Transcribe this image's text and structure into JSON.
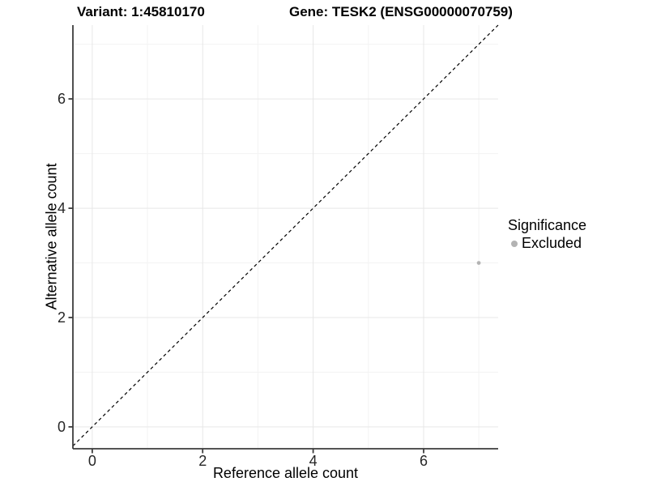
{
  "chart_data": {
    "type": "scatter",
    "title_left": "Variant: 1:45810170",
    "title_right": "Gene: TESK2 (ENSG00000070759)",
    "xlabel": "Reference allele count",
    "ylabel": "Alternative allele count",
    "xlim": [
      -0.35,
      7.35
    ],
    "ylim": [
      -0.4,
      7.35
    ],
    "x_ticks": [
      0,
      2,
      4,
      6
    ],
    "y_ticks": [
      0,
      2,
      4,
      6
    ],
    "x_minor_gridlines": [
      1,
      3,
      5,
      7
    ],
    "y_minor_gridlines": [
      1,
      3,
      5,
      7
    ],
    "grid": true,
    "points": [
      {
        "x": 7,
        "y": 3,
        "series": "Excluded",
        "color": "#b3b3b3"
      }
    ],
    "reference_line": {
      "type": "identity",
      "style": "dashed",
      "color": "#000000"
    },
    "legend": {
      "title": "Significance",
      "position": "right",
      "items": [
        {
          "label": "Excluded",
          "color": "#b3b3b3"
        }
      ]
    },
    "colors": {
      "background": "#ffffff",
      "axis_line": "#3c3c3c",
      "grid_major": "#e7e7e7",
      "grid_minor": "#f3f3f3",
      "tick_text": "#262626"
    }
  }
}
